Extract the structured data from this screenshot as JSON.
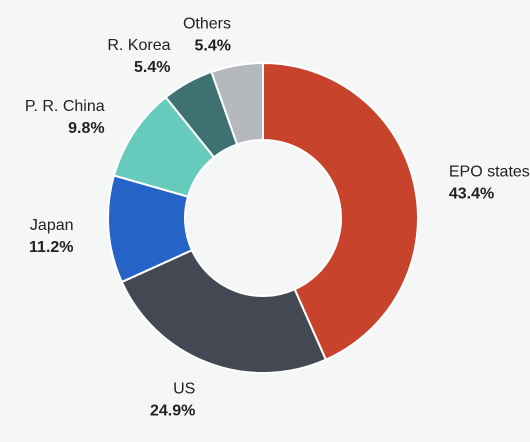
{
  "chart_data": {
    "type": "pie",
    "donut": true,
    "title": "",
    "legend": "none",
    "slices": [
      {
        "label": "EPO states",
        "value": 43.4,
        "display": "43.4%",
        "color": "#c8432b"
      },
      {
        "label": "US",
        "value": 24.9,
        "display": "24.9%",
        "color": "#434853"
      },
      {
        "label": "Japan",
        "value": 11.2,
        "display": "11.2%",
        "color": "#2563c7"
      },
      {
        "label": "P. R. China",
        "value": 9.8,
        "display": "9.8%",
        "color": "#66cbbd"
      },
      {
        "label": "R. Korea",
        "value": 5.4,
        "display": "5.4%",
        "color": "#3e7272"
      },
      {
        "label": "Others",
        "value": 5.4,
        "display": "5.4%",
        "color": "#b5b8bc"
      }
    ]
  }
}
